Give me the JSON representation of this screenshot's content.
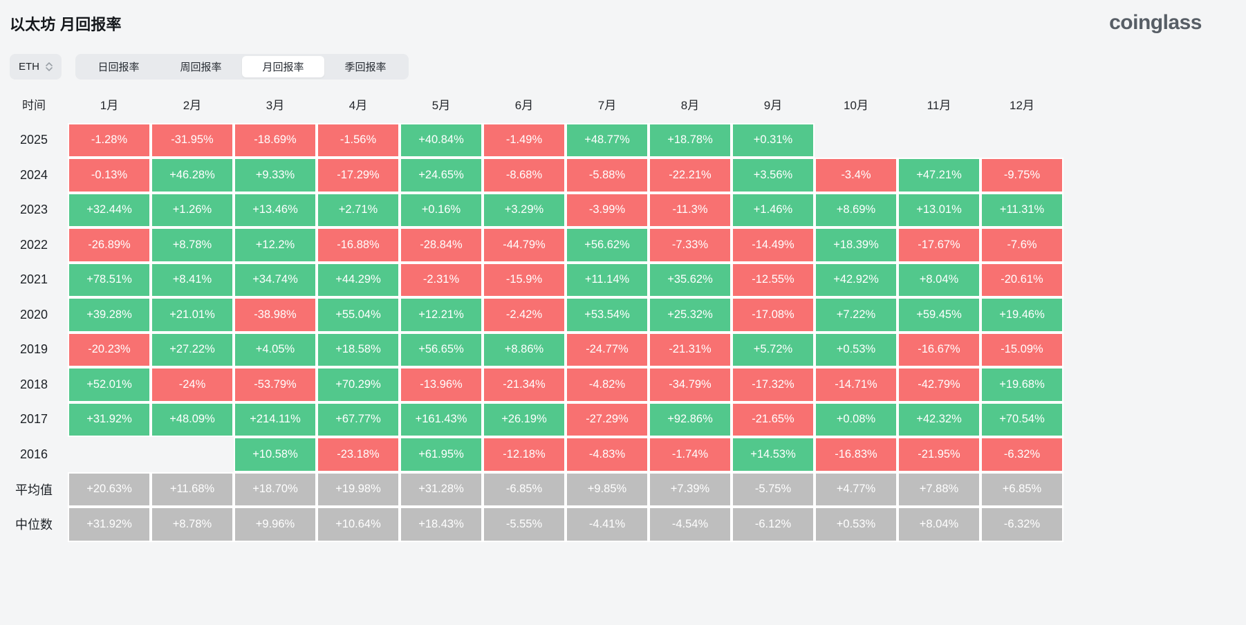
{
  "page": {
    "title": "以太坊 月回报率",
    "logo": "coinglass"
  },
  "controls": {
    "symbol": "ETH",
    "tabs": [
      {
        "label": "日回报率",
        "active": false
      },
      {
        "label": "周回报率",
        "active": false
      },
      {
        "label": "月回报率",
        "active": true
      },
      {
        "label": "季回报率",
        "active": false
      }
    ]
  },
  "colors": {
    "positive": "#52c88c",
    "negative": "#f87171",
    "summary": "#bebebe"
  },
  "chart_data": {
    "type": "heatmap",
    "corner_label": "时间",
    "columns": [
      "1月",
      "2月",
      "3月",
      "4月",
      "5月",
      "6月",
      "7月",
      "8月",
      "9月",
      "10月",
      "11月",
      "12月"
    ],
    "rows": [
      {
        "label": "2025",
        "summary": false,
        "values": [
          "-1.28%",
          "-31.95%",
          "-18.69%",
          "-1.56%",
          "+40.84%",
          "-1.49%",
          "+48.77%",
          "+18.78%",
          "+0.31%",
          "",
          "",
          ""
        ]
      },
      {
        "label": "2024",
        "summary": false,
        "values": [
          "-0.13%",
          "+46.28%",
          "+9.33%",
          "-17.29%",
          "+24.65%",
          "-8.68%",
          "-5.88%",
          "-22.21%",
          "+3.56%",
          "-3.4%",
          "+47.21%",
          "-9.75%"
        ]
      },
      {
        "label": "2023",
        "summary": false,
        "values": [
          "+32.44%",
          "+1.26%",
          "+13.46%",
          "+2.71%",
          "+0.16%",
          "+3.29%",
          "-3.99%",
          "-11.3%",
          "+1.46%",
          "+8.69%",
          "+13.01%",
          "+11.31%"
        ]
      },
      {
        "label": "2022",
        "summary": false,
        "values": [
          "-26.89%",
          "+8.78%",
          "+12.2%",
          "-16.88%",
          "-28.84%",
          "-44.79%",
          "+56.62%",
          "-7.33%",
          "-14.49%",
          "+18.39%",
          "-17.67%",
          "-7.6%"
        ]
      },
      {
        "label": "2021",
        "summary": false,
        "values": [
          "+78.51%",
          "+8.41%",
          "+34.74%",
          "+44.29%",
          "-2.31%",
          "-15.9%",
          "+11.14%",
          "+35.62%",
          "-12.55%",
          "+42.92%",
          "+8.04%",
          "-20.61%"
        ]
      },
      {
        "label": "2020",
        "summary": false,
        "values": [
          "+39.28%",
          "+21.01%",
          "-38.98%",
          "+55.04%",
          "+12.21%",
          "-2.42%",
          "+53.54%",
          "+25.32%",
          "-17.08%",
          "+7.22%",
          "+59.45%",
          "+19.46%"
        ]
      },
      {
        "label": "2019",
        "summary": false,
        "values": [
          "-20.23%",
          "+27.22%",
          "+4.05%",
          "+18.58%",
          "+56.65%",
          "+8.86%",
          "-24.77%",
          "-21.31%",
          "+5.72%",
          "+0.53%",
          "-16.67%",
          "-15.09%"
        ]
      },
      {
        "label": "2018",
        "summary": false,
        "values": [
          "+52.01%",
          "-24%",
          "-53.79%",
          "+70.29%",
          "-13.96%",
          "-21.34%",
          "-4.82%",
          "-34.79%",
          "-17.32%",
          "-14.71%",
          "-42.79%",
          "+19.68%"
        ]
      },
      {
        "label": "2017",
        "summary": false,
        "values": [
          "+31.92%",
          "+48.09%",
          "+214.11%",
          "+67.77%",
          "+161.43%",
          "+26.19%",
          "-27.29%",
          "+92.86%",
          "-21.65%",
          "+0.08%",
          "+42.32%",
          "+70.54%"
        ]
      },
      {
        "label": "2016",
        "summary": false,
        "values": [
          "",
          "",
          "+10.58%",
          "-23.18%",
          "+61.95%",
          "-12.18%",
          "-4.83%",
          "-1.74%",
          "+14.53%",
          "-16.83%",
          "-21.95%",
          "-6.32%"
        ]
      },
      {
        "label": "平均值",
        "summary": true,
        "values": [
          "+20.63%",
          "+11.68%",
          "+18.70%",
          "+19.98%",
          "+31.28%",
          "-6.85%",
          "+9.85%",
          "+7.39%",
          "-5.75%",
          "+4.77%",
          "+7.88%",
          "+6.85%"
        ]
      },
      {
        "label": "中位数",
        "summary": true,
        "values": [
          "+31.92%",
          "+8.78%",
          "+9.96%",
          "+10.64%",
          "+18.43%",
          "-5.55%",
          "-4.41%",
          "-4.54%",
          "-6.12%",
          "+0.53%",
          "+8.04%",
          "-6.32%"
        ]
      }
    ]
  }
}
